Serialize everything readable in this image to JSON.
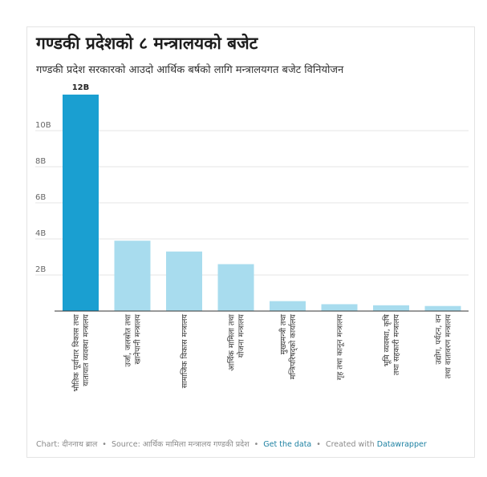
{
  "chart_data": {
    "type": "bar",
    "title": "गण्डकी प्रदेशको ८ मन्त्रालयको बजेट",
    "subtitle": "गण्डकी प्रदेश सरकारको आउदो आर्थिक बर्षको लागि मन्त्रालयगत बजेट विनियोजन",
    "categories": [
      "भौतिक पूर्वाधार विकास तथा यातायात व्यवस्था मन्त्रालय",
      "उर्जा, जलस्रोत तथा खानेपानी मन्त्रालय",
      "सामाजिक विकास मन्त्रालय",
      "आर्थिक मामिला तथा योजना मन्त्रालय",
      "मुख्यमन्त्री तथा मन्त्रिपरिषद्को कार्यालय",
      "गृह तथा कानून मन्त्रालय",
      "भूमि व्यवस्था, कृषि तथा सहकारी मन्त्रालय",
      "उद्योग, पर्यटन, वन तथा वातावरण मन्त्रालय"
    ],
    "values": [
      12,
      3.9,
      3.3,
      2.6,
      0.55,
      0.38,
      0.32,
      0.28
    ],
    "value_unit": "B",
    "data_labels": [
      "12B",
      "",
      "",
      "",
      "",
      "",
      "",
      ""
    ],
    "y_ticks": [
      {
        "value": 2,
        "label": "2B"
      },
      {
        "value": 4,
        "label": "4B"
      },
      {
        "value": 6,
        "label": "6B"
      },
      {
        "value": 8,
        "label": "8B"
      },
      {
        "value": 10,
        "label": "10B"
      }
    ],
    "ylim": [
      0,
      12
    ],
    "grid": true,
    "colors": {
      "highlight": "#1a9fd1",
      "default": "#a8dcee"
    }
  },
  "footer": {
    "chart_by": "Chart: दीननाथ ब्राल",
    "source": "Source: आर्थिक मामिला मन्त्रालय गण्डकी प्रदेश",
    "get_data": "Get the data",
    "created_with": "Created with",
    "tool": "Datawrapper",
    "separator": "•"
  }
}
